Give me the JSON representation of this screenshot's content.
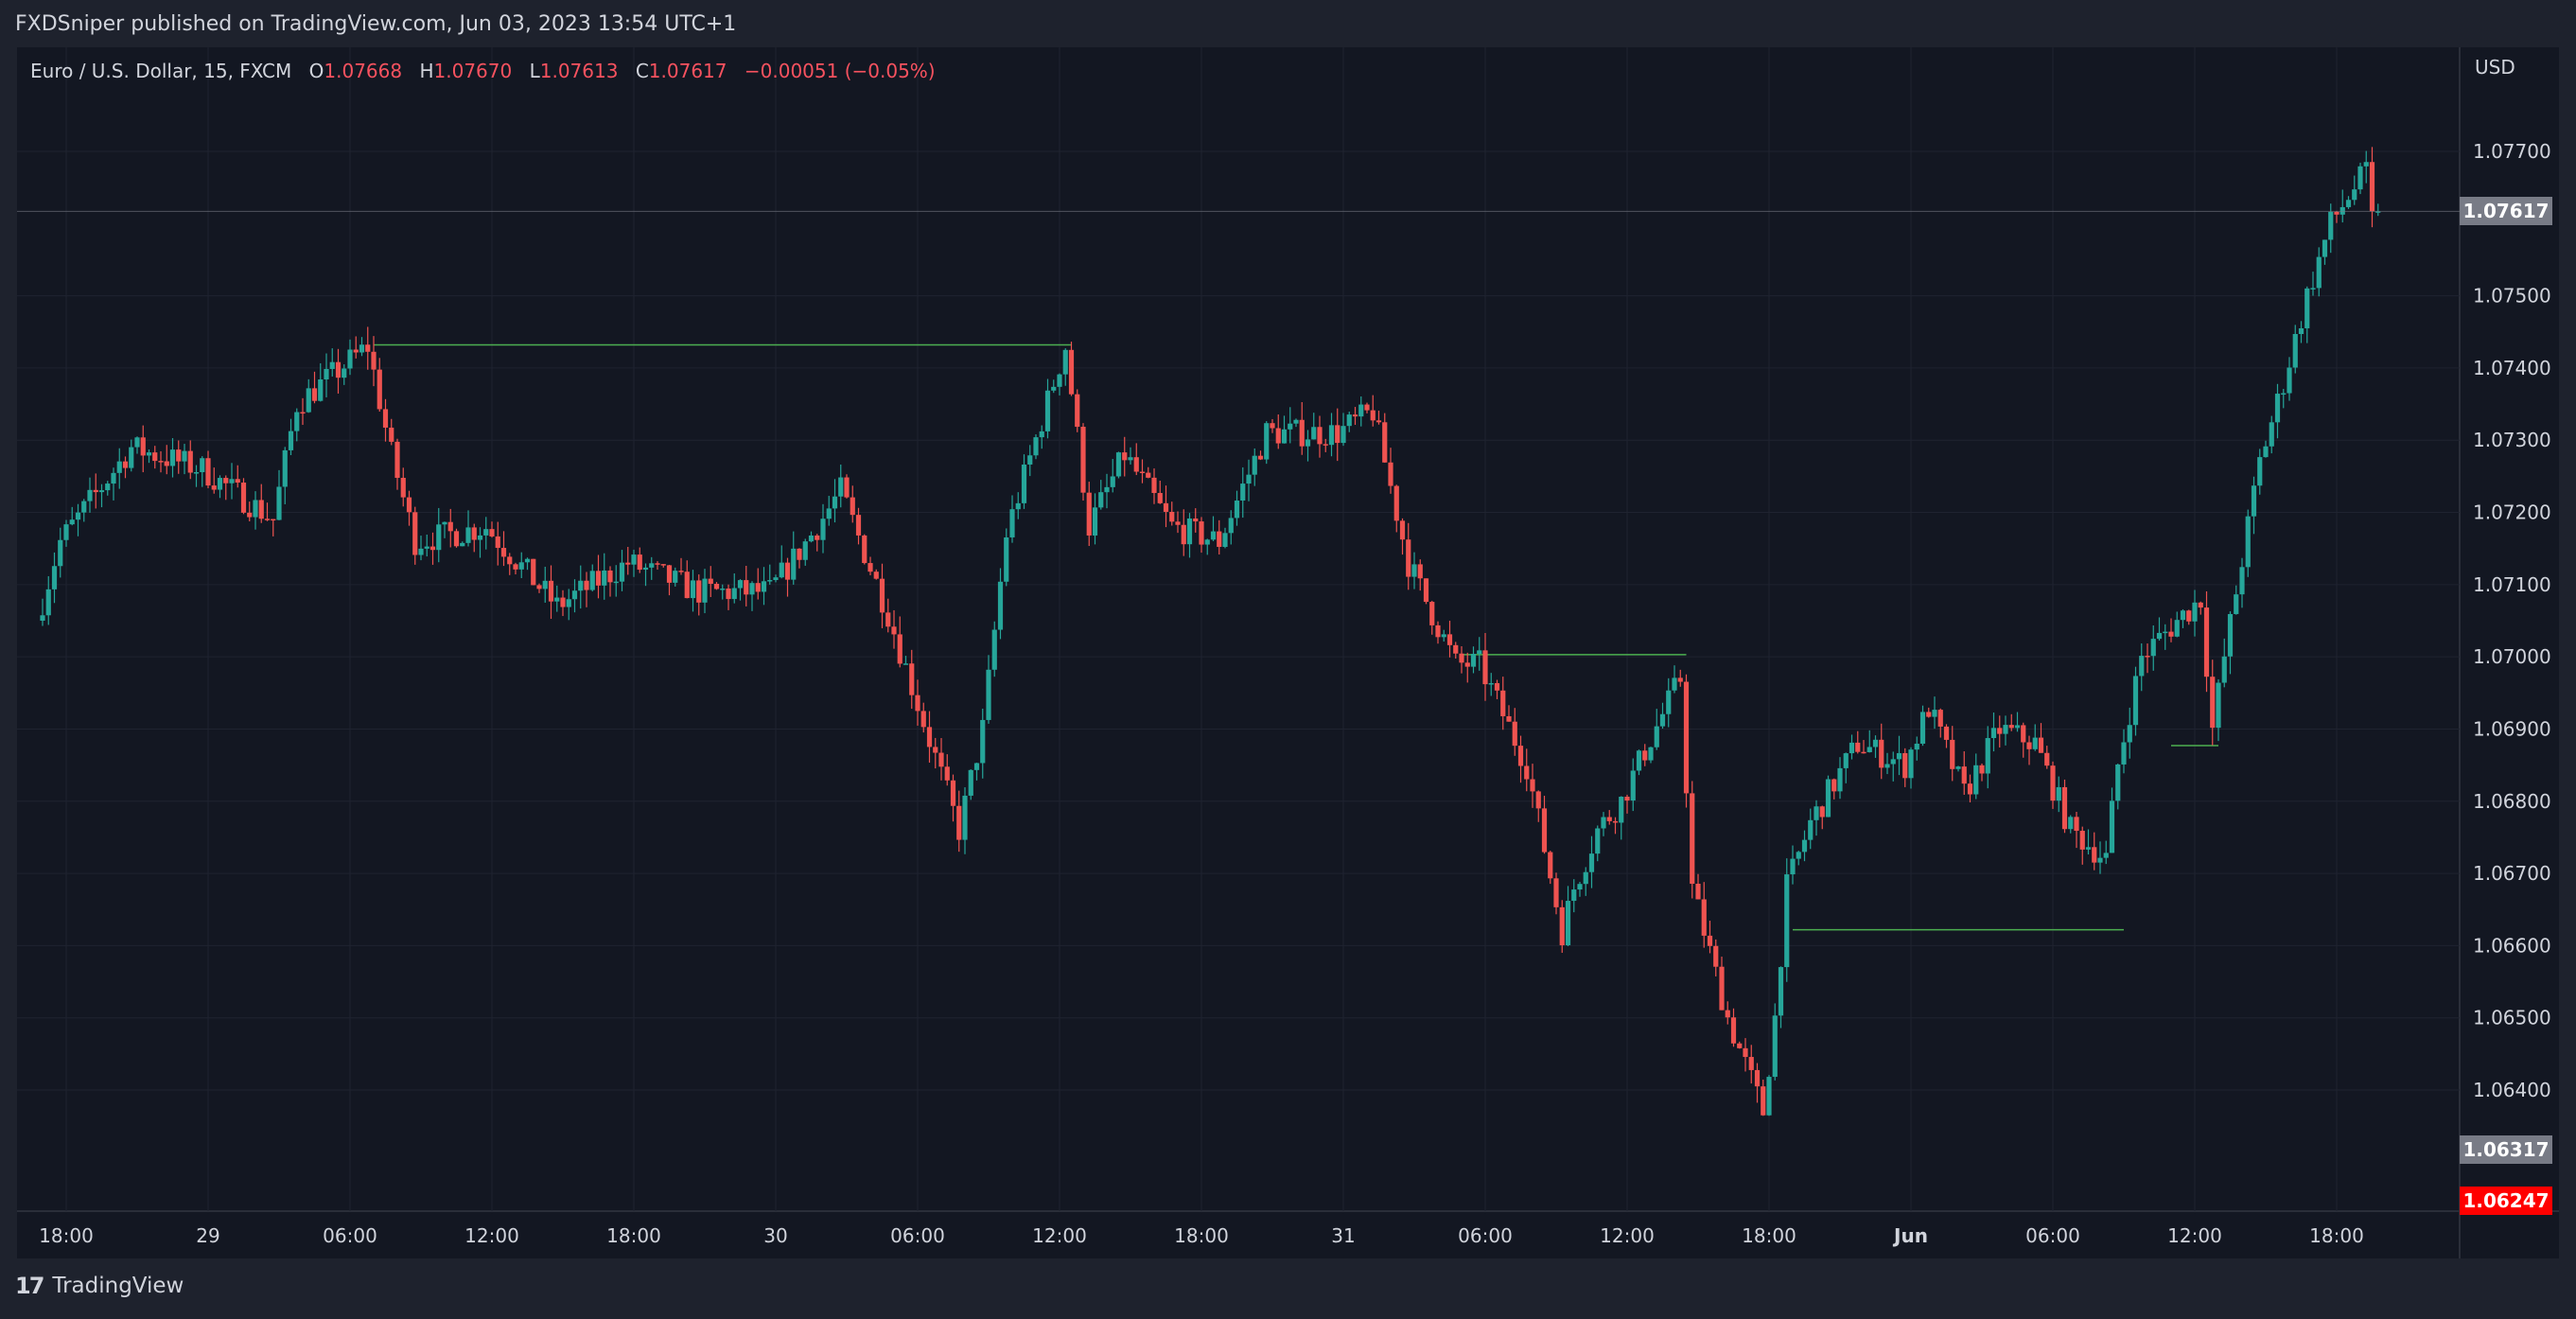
{
  "header": {
    "published_text": "FXDSniper published on TradingView.com, Jun 03, 2023 13:54 UTC+1"
  },
  "legend": {
    "symbol": "Euro / U.S. Dollar, 15, FXCM",
    "o_label": "O",
    "o_value": "1.07668",
    "h_label": "H",
    "h_value": "1.07670",
    "l_label": "L",
    "l_value": "1.07613",
    "c_label": "C",
    "c_value": "1.07617",
    "change": "−0.00051 (−0.05%)"
  },
  "footer": {
    "brand": "TradingView",
    "logo_icon": "tradingview-logo-icon"
  },
  "colors": {
    "background": "#131722",
    "up": "#26a69a",
    "down": "#ef5350",
    "level_line": "#4caf50",
    "last_price_tag": "#787b86",
    "current_tag": "#ff0000"
  },
  "chart_data": {
    "type": "candlestick",
    "symbol": "EURUSD",
    "timeframe": "15",
    "exchange": "FXCM",
    "price_axis": {
      "unit": "USD",
      "ticks": [
        1.077,
        1.075,
        1.074,
        1.073,
        1.072,
        1.071,
        1.07,
        1.069,
        1.068,
        1.067,
        1.066,
        1.065,
        1.064
      ],
      "tick_labels": [
        "1.07700",
        "1.07500",
        "1.07400",
        "1.07300",
        "1.07200",
        "1.07100",
        "1.07000",
        "1.06900",
        "1.06800",
        "1.06700",
        "1.06600",
        "1.06500",
        "1.06400"
      ],
      "range": [
        1.0622,
        1.078
      ]
    },
    "time_axis": {
      "labels": [
        "18:00",
        "29",
        "06:00",
        "12:00",
        "18:00",
        "30",
        "06:00",
        "12:00",
        "18:00",
        "31",
        "06:00",
        "12:00",
        "18:00",
        "Jun",
        "06:00",
        "12:00",
        "18:00"
      ],
      "bold_labels": [
        "Jun"
      ]
    },
    "price_tags": [
      {
        "value": "1.07617",
        "kind": "last-price"
      },
      {
        "value": "1.06317",
        "kind": "price-marker"
      },
      {
        "value": "1.06247",
        "kind": "countdown-price"
      }
    ],
    "anchors": [
      {
        "t": "May 28 17:00",
        "price": 1.0705
      },
      {
        "t": "May 28 18:00",
        "price": 1.0716
      },
      {
        "t": "May 28 21:00",
        "price": 1.0729
      },
      {
        "t": "May 29 00:00",
        "price": 1.0726
      },
      {
        "t": "May 29 03:00",
        "price": 1.0719
      },
      {
        "t": "May 29 04:00",
        "price": 1.0735
      },
      {
        "t": "May 29 07:00",
        "price": 1.0743
      },
      {
        "t": "May 29 08:00",
        "price": 1.0728
      },
      {
        "t": "May 29 09:00",
        "price": 1.0716
      },
      {
        "t": "May 29 12:00",
        "price": 1.0718
      },
      {
        "t": "May 29 15:00",
        "price": 1.0707
      },
      {
        "t": "May 29 18:00",
        "price": 1.0713
      },
      {
        "t": "May 29 21:00",
        "price": 1.0709
      },
      {
        "t": "May 30 00:00",
        "price": 1.0709
      },
      {
        "t": "May 30 02:00",
        "price": 1.0718
      },
      {
        "t": "May 30 03:00",
        "price": 1.0723
      },
      {
        "t": "May 30 05:00",
        "price": 1.0706
      },
      {
        "t": "May 30 07:00",
        "price": 1.0686
      },
      {
        "t": "May 30 08:00",
        "price": 1.0676
      },
      {
        "t": "May 30 09:00",
        "price": 1.069
      },
      {
        "t": "May 30 10:00",
        "price": 1.0717
      },
      {
        "t": "May 30 12:00",
        "price": 1.0738
      },
      {
        "t": "May 30 12:30",
        "price": 1.0743
      },
      {
        "t": "May 30 13:30",
        "price": 1.0718
      },
      {
        "t": "May 30 15:00",
        "price": 1.0728
      },
      {
        "t": "May 30 17:00",
        "price": 1.0718
      },
      {
        "t": "May 30 19:00",
        "price": 1.0716
      },
      {
        "t": "May 30 21:00",
        "price": 1.0731
      },
      {
        "t": "May 31 00:00",
        "price": 1.0731
      },
      {
        "t": "May 31 01:30",
        "price": 1.0734
      },
      {
        "t": "May 31 03:00",
        "price": 1.0713
      },
      {
        "t": "May 31 05:00",
        "price": 1.0699
      },
      {
        "t": "May 31 06:00",
        "price": 1.0699
      },
      {
        "t": "May 31 08:00",
        "price": 1.0685
      },
      {
        "t": "May 31 09:30",
        "price": 1.0662
      },
      {
        "t": "May 31 10:00",
        "price": 1.0668
      },
      {
        "t": "May 31 11:00",
        "price": 1.0676
      },
      {
        "t": "May 31 12:00",
        "price": 1.068
      },
      {
        "t": "May 31 13:00",
        "price": 1.0687
      },
      {
        "t": "May 31 14:30",
        "price": 1.0697
      },
      {
        "t": "May 31 15:00",
        "price": 1.0668
      },
      {
        "t": "May 31 16:30",
        "price": 1.065
      },
      {
        "t": "May 31 18:00",
        "price": 1.0637
      },
      {
        "t": "May 31 18:30",
        "price": 1.065
      },
      {
        "t": "May 31 19:00",
        "price": 1.0668
      },
      {
        "t": "May 31 20:00",
        "price": 1.0677
      },
      {
        "t": "May 31 22:00",
        "price": 1.0688
      },
      {
        "t": "Jun 01 00:00",
        "price": 1.0685
      },
      {
        "t": "Jun 01 01:00",
        "price": 1.0693
      },
      {
        "t": "Jun 01 02:30",
        "price": 1.0681
      },
      {
        "t": "Jun 01 04:00",
        "price": 1.069
      },
      {
        "t": "Jun 01 05:30",
        "price": 1.0688
      },
      {
        "t": "Jun 01 07:00",
        "price": 1.0676
      },
      {
        "t": "Jun 01 08:30",
        "price": 1.0672
      },
      {
        "t": "Jun 01 09:00",
        "price": 1.0685
      },
      {
        "t": "Jun 01 10:00",
        "price": 1.07
      },
      {
        "t": "Jun 01 11:30",
        "price": 1.0705
      },
      {
        "t": "Jun 01 12:30",
        "price": 1.0708
      },
      {
        "t": "Jun 01 13:00",
        "price": 1.069
      },
      {
        "t": "Jun 01 13:30",
        "price": 1.07
      },
      {
        "t": "Jun 01 15:00",
        "price": 1.0727
      },
      {
        "t": "Jun 01 16:00",
        "price": 1.0738
      },
      {
        "t": "Jun 01 17:00",
        "price": 1.075
      },
      {
        "t": "Jun 01 18:00",
        "price": 1.076
      },
      {
        "t": "Jun 01 19:00",
        "price": 1.0765
      },
      {
        "t": "Jun 01 19:30",
        "price": 1.0767
      },
      {
        "t": "Jun 01 19:45",
        "price": 1.07617
      }
    ],
    "horizontal_levels": [
      {
        "price": 1.07432,
        "from": "May 29 07:00",
        "to": "May 30 12:30"
      },
      {
        "price": 1.07003,
        "from": "May 31 05:00",
        "to": "May 31 14:30"
      },
      {
        "price": 1.06622,
        "from": "May 31 19:00",
        "to": "Jun 01 09:00"
      },
      {
        "price": 1.06877,
        "from": "Jun 01 11:00",
        "to": "Jun 01 13:00"
      }
    ]
  }
}
